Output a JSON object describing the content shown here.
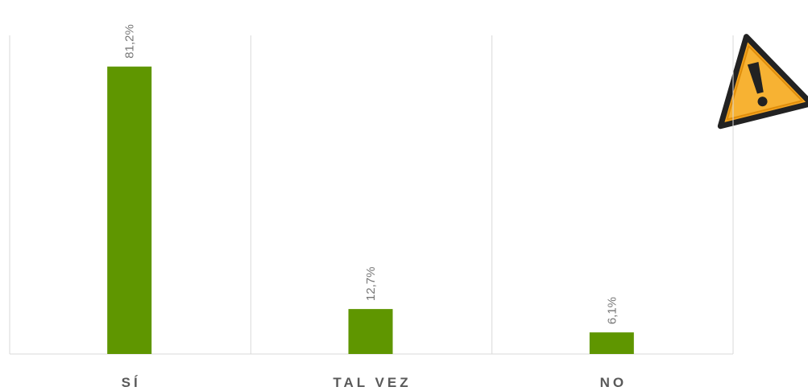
{
  "chart_data": {
    "type": "bar",
    "categories": [
      "SÍ",
      "TAL VEZ",
      "NO"
    ],
    "values": [
      81.2,
      12.7,
      6.1
    ],
    "value_labels": [
      "81,2%",
      "12,7%",
      "6,1%"
    ],
    "color": "#5f9600",
    "grid": true
  }
}
